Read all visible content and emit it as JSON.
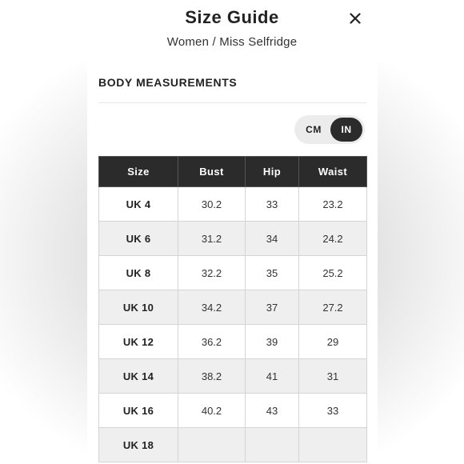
{
  "header": {
    "title": "Size Guide",
    "subtitle": "Women / Miss Selfridge",
    "close_icon": "close-icon"
  },
  "section": {
    "title": "BODY MEASUREMENTS"
  },
  "units": {
    "options": [
      "CM",
      "IN"
    ],
    "selected": "IN"
  },
  "table": {
    "columns": [
      "Size",
      "Bust",
      "Hip",
      "Waist"
    ],
    "rows": [
      {
        "size": "UK 4",
        "bust": "30.2",
        "hip": "33",
        "waist": "23.2"
      },
      {
        "size": "UK 6",
        "bust": "31.2",
        "hip": "34",
        "waist": "24.2"
      },
      {
        "size": "UK 8",
        "bust": "32.2",
        "hip": "35",
        "waist": "25.2"
      },
      {
        "size": "UK 10",
        "bust": "34.2",
        "hip": "37",
        "waist": "27.2"
      },
      {
        "size": "UK 12",
        "bust": "36.2",
        "hip": "39",
        "waist": "29"
      },
      {
        "size": "UK 14",
        "bust": "38.2",
        "hip": "41",
        "waist": "31"
      },
      {
        "size": "UK 16",
        "bust": "40.2",
        "hip": "43",
        "waist": "33"
      },
      {
        "size": "UK 18",
        "bust": "",
        "hip": "",
        "waist": ""
      }
    ]
  }
}
